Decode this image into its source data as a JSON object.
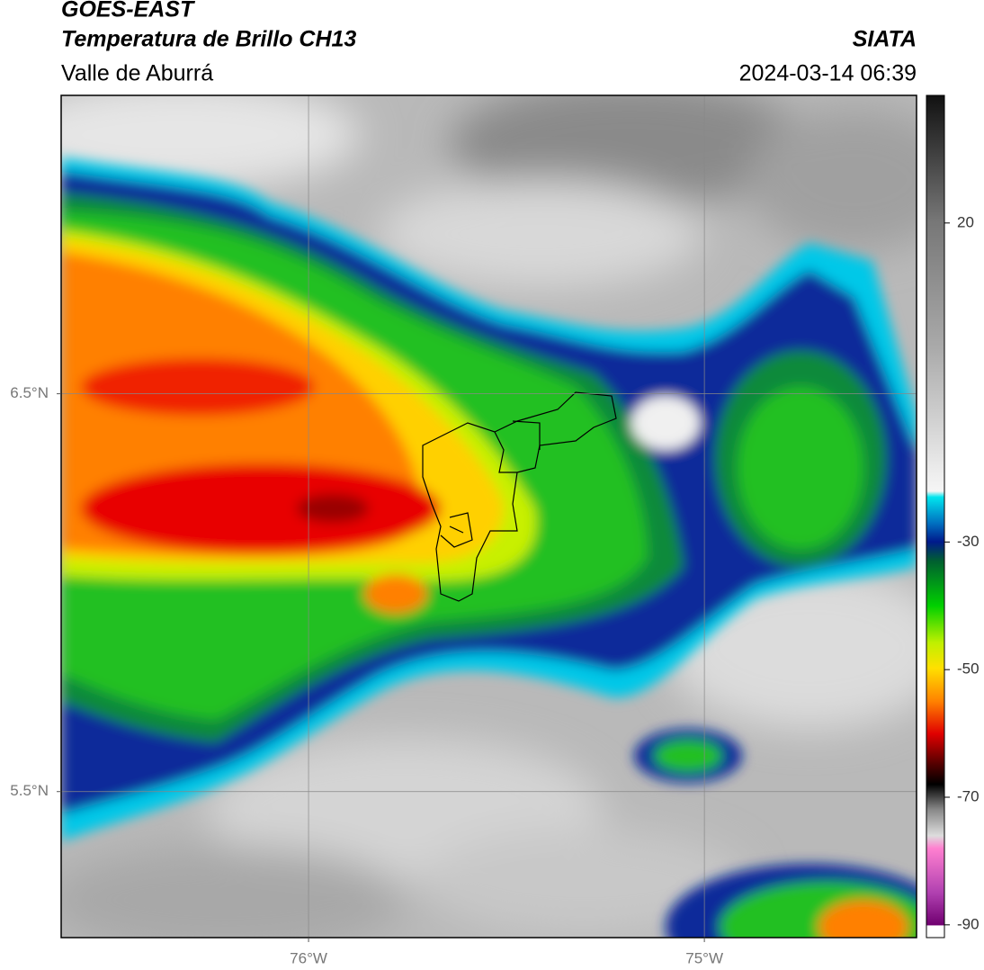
{
  "header": {
    "title": "GOES-EAST",
    "subtitle": "Temperatura de Brillo CH13",
    "region": "Valle de Aburrá",
    "source": "SIATA",
    "datetime": "2024-03-14 06:39"
  },
  "map": {
    "xlim": [
      -76.625,
      -74.464
    ],
    "ylim": [
      5.133,
      7.25
    ],
    "xticks": [
      {
        "value": -76,
        "label": "76°W"
      },
      {
        "value": -75,
        "label": "75°W"
      }
    ],
    "yticks": [
      {
        "value": 6.5,
        "label": "6.5°N"
      },
      {
        "value": 5.5,
        "label": "5.5°N"
      }
    ],
    "grid": true
  },
  "colorbar": {
    "lim": [
      -92,
      40
    ],
    "ticks": [
      20,
      -30,
      -50,
      -70,
      -90
    ]
  }
}
